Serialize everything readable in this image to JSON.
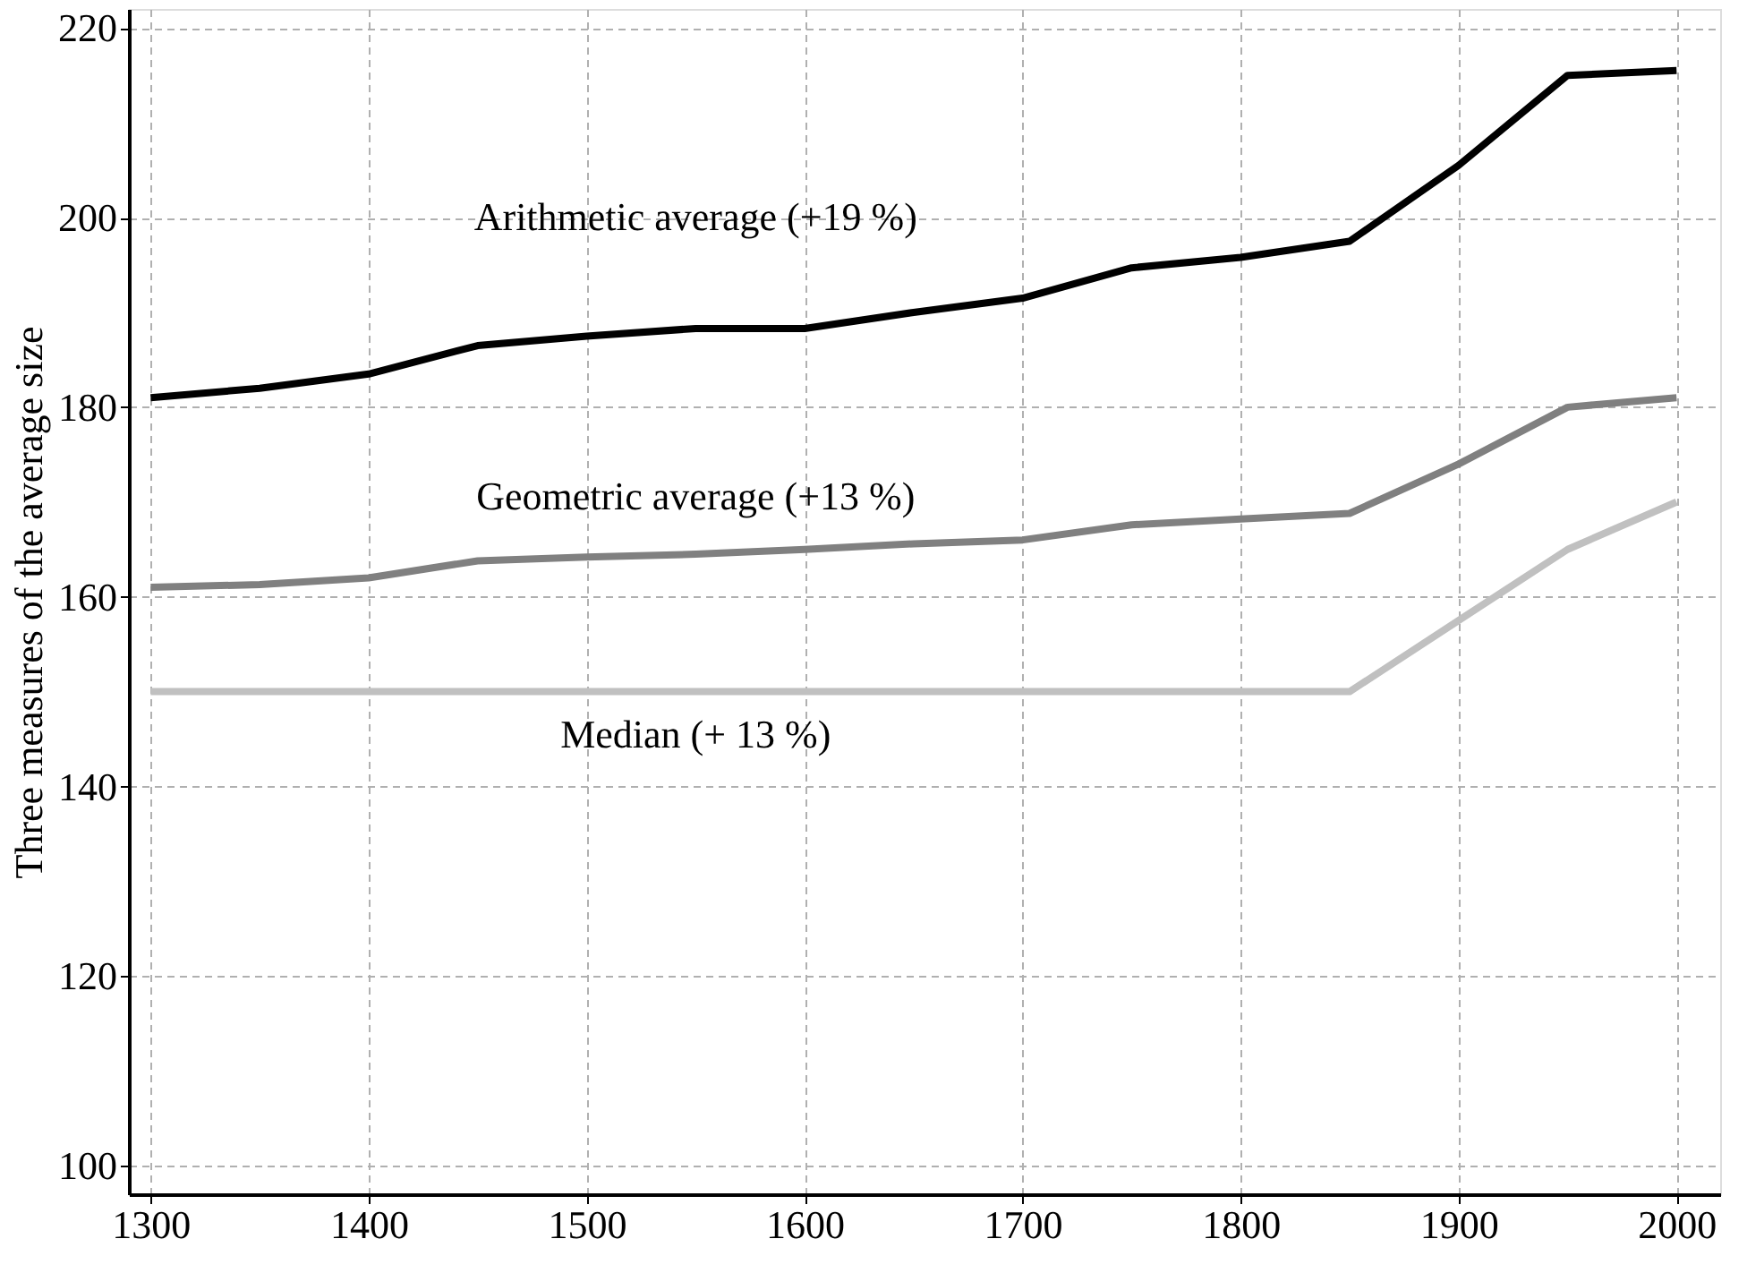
{
  "chart_data": {
    "type": "line",
    "ylabel": "Three measures of the average size",
    "x": [
      1300,
      1350,
      1400,
      1450,
      1500,
      1550,
      1600,
      1650,
      1700,
      1750,
      1800,
      1850,
      1900,
      1950,
      2000
    ],
    "series": [
      {
        "name": "Arithmetic average (+19 %)",
        "color": "#000000",
        "values": [
          181,
          182,
          183.5,
          186.5,
          187.5,
          188.3,
          188.3,
          190,
          191.5,
          194.7,
          195.8,
          197.5,
          205.5,
          215,
          215.5
        ]
      },
      {
        "name": "Geometric average (+13 %)",
        "color": "#808080",
        "values": [
          161,
          161.3,
          162,
          163.8,
          164.2,
          164.5,
          165,
          165.6,
          166,
          167.6,
          168.2,
          168.8,
          174,
          180,
          181
        ]
      },
      {
        "name": "Median (+ 13 %)",
        "color": "#c0c0c0",
        "values": [
          150,
          150,
          150,
          150,
          150,
          150,
          150,
          150,
          150,
          150,
          150,
          150,
          157.5,
          165,
          170
        ]
      }
    ],
    "xlim": [
      1290,
      2020
    ],
    "ylim": [
      97,
      222
    ],
    "xticks": [
      1300,
      1400,
      1500,
      1600,
      1700,
      1800,
      1900,
      2000
    ],
    "yticks": [
      100,
      120,
      140,
      160,
      180,
      200,
      220
    ],
    "grid": true,
    "line_style": "solid",
    "marker": "none"
  }
}
